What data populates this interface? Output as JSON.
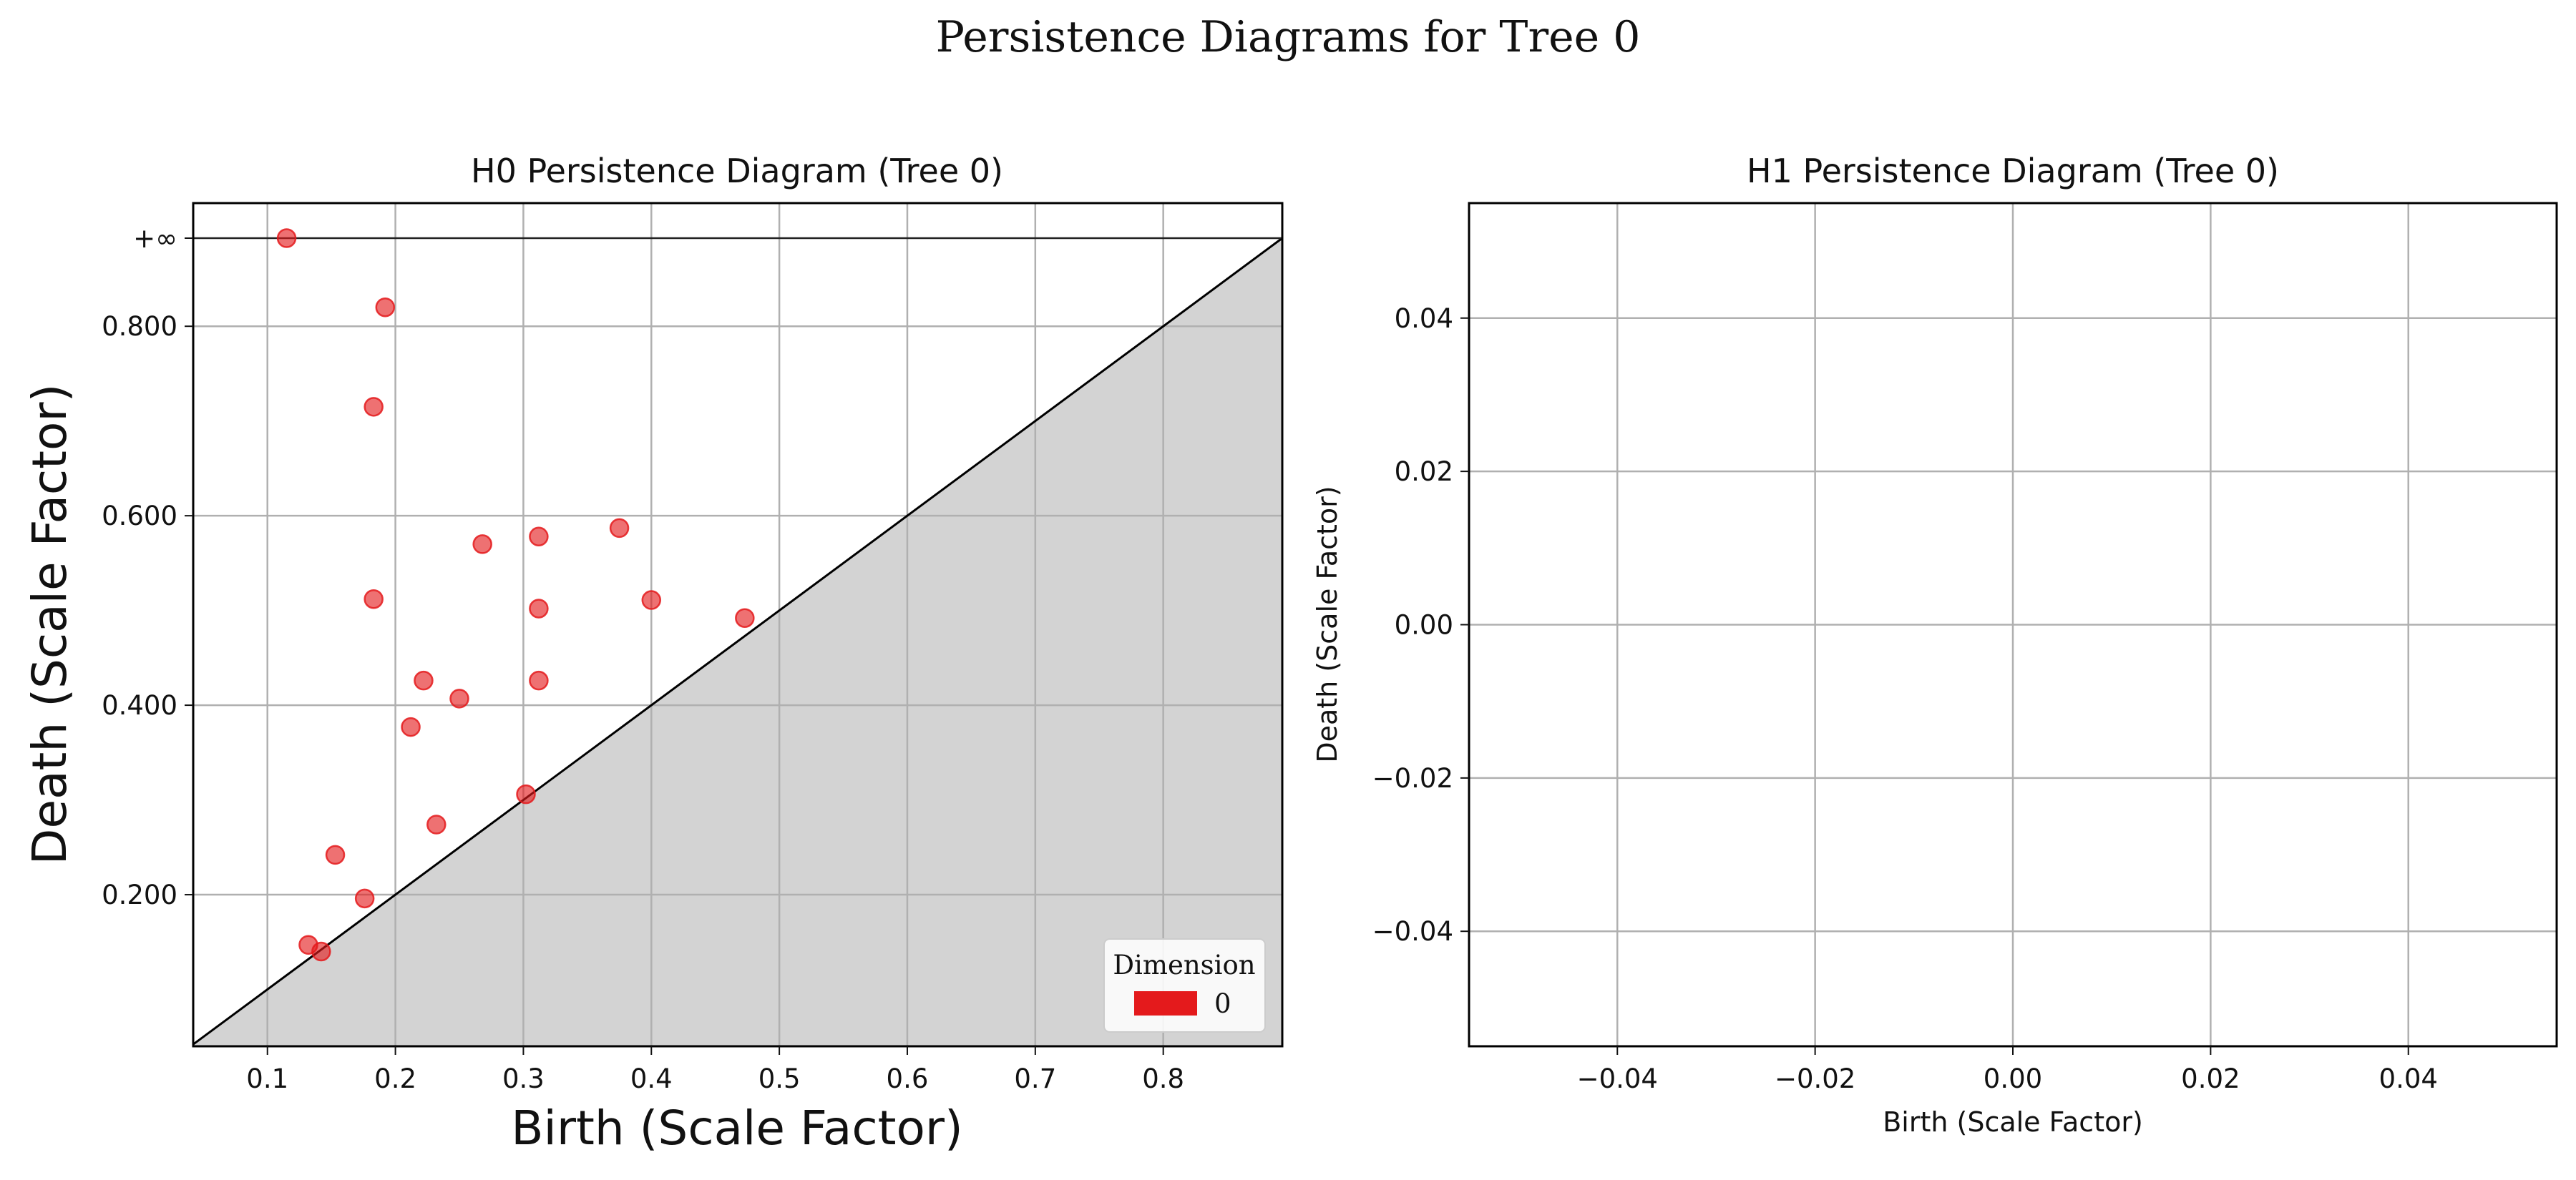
{
  "title": "Persistence Diagrams for Tree 0",
  "chart_data": [
    {
      "type": "scatter",
      "title": "H0 Persistence Diagram (Tree 0)",
      "xlabel": "Birth (Scale Factor)",
      "ylabel": "Death (Scale Factor)",
      "xlim": [
        0.042,
        0.893
      ],
      "ylim": [
        0.04,
        0.93
      ],
      "infinity_value": 0.893,
      "infinity_label": "+∞",
      "x_ticks": [
        0.1,
        0.2,
        0.3,
        0.4,
        0.5,
        0.6,
        0.7,
        0.8
      ],
      "x_tick_labels": [
        "0.1",
        "0.2",
        "0.3",
        "0.4",
        "0.5",
        "0.6",
        "0.7",
        "0.8"
      ],
      "y_ticks": [
        0.2,
        0.4,
        0.6,
        0.8
      ],
      "y_tick_labels": [
        "0.200",
        "0.400",
        "0.600",
        "0.800"
      ],
      "grid": true,
      "diagonal": true,
      "legend": {
        "title": "Dimension",
        "placement": "bottom-right",
        "entries": [
          {
            "label": "0",
            "color": "#e41a1c"
          }
        ]
      },
      "series": [
        {
          "name": "0",
          "color": "#e41a1c",
          "points": [
            {
              "x": 0.115,
              "y": "inf"
            },
            {
              "x": 0.192,
              "y": 0.82
            },
            {
              "x": 0.183,
              "y": 0.715
            },
            {
              "x": 0.268,
              "y": 0.57
            },
            {
              "x": 0.312,
              "y": 0.578
            },
            {
              "x": 0.375,
              "y": 0.587
            },
            {
              "x": 0.183,
              "y": 0.512
            },
            {
              "x": 0.312,
              "y": 0.502
            },
            {
              "x": 0.4,
              "y": 0.511
            },
            {
              "x": 0.473,
              "y": 0.492
            },
            {
              "x": 0.222,
              "y": 0.426
            },
            {
              "x": 0.25,
              "y": 0.407
            },
            {
              "x": 0.312,
              "y": 0.426
            },
            {
              "x": 0.212,
              "y": 0.377
            },
            {
              "x": 0.302,
              "y": 0.306
            },
            {
              "x": 0.232,
              "y": 0.274
            },
            {
              "x": 0.153,
              "y": 0.242
            },
            {
              "x": 0.176,
              "y": 0.196
            },
            {
              "x": 0.132,
              "y": 0.147
            },
            {
              "x": 0.142,
              "y": 0.14
            }
          ]
        }
      ]
    },
    {
      "type": "scatter",
      "title": "H1 Persistence Diagram (Tree 0)",
      "xlabel": "Birth (Scale Factor)",
      "ylabel": "Death (Scale Factor)",
      "xlim": [
        -0.055,
        0.055
      ],
      "ylim": [
        -0.055,
        0.055
      ],
      "x_ticks": [
        -0.04,
        -0.02,
        0.0,
        0.02,
        0.04
      ],
      "x_tick_labels": [
        "−0.04",
        "−0.02",
        "0.00",
        "0.02",
        "0.04"
      ],
      "y_ticks": [
        -0.04,
        -0.02,
        0.0,
        0.02,
        0.04
      ],
      "y_tick_labels": [
        "−0.04",
        "−0.02",
        "0.00",
        "0.02",
        "0.04"
      ],
      "grid": true,
      "series": []
    }
  ]
}
